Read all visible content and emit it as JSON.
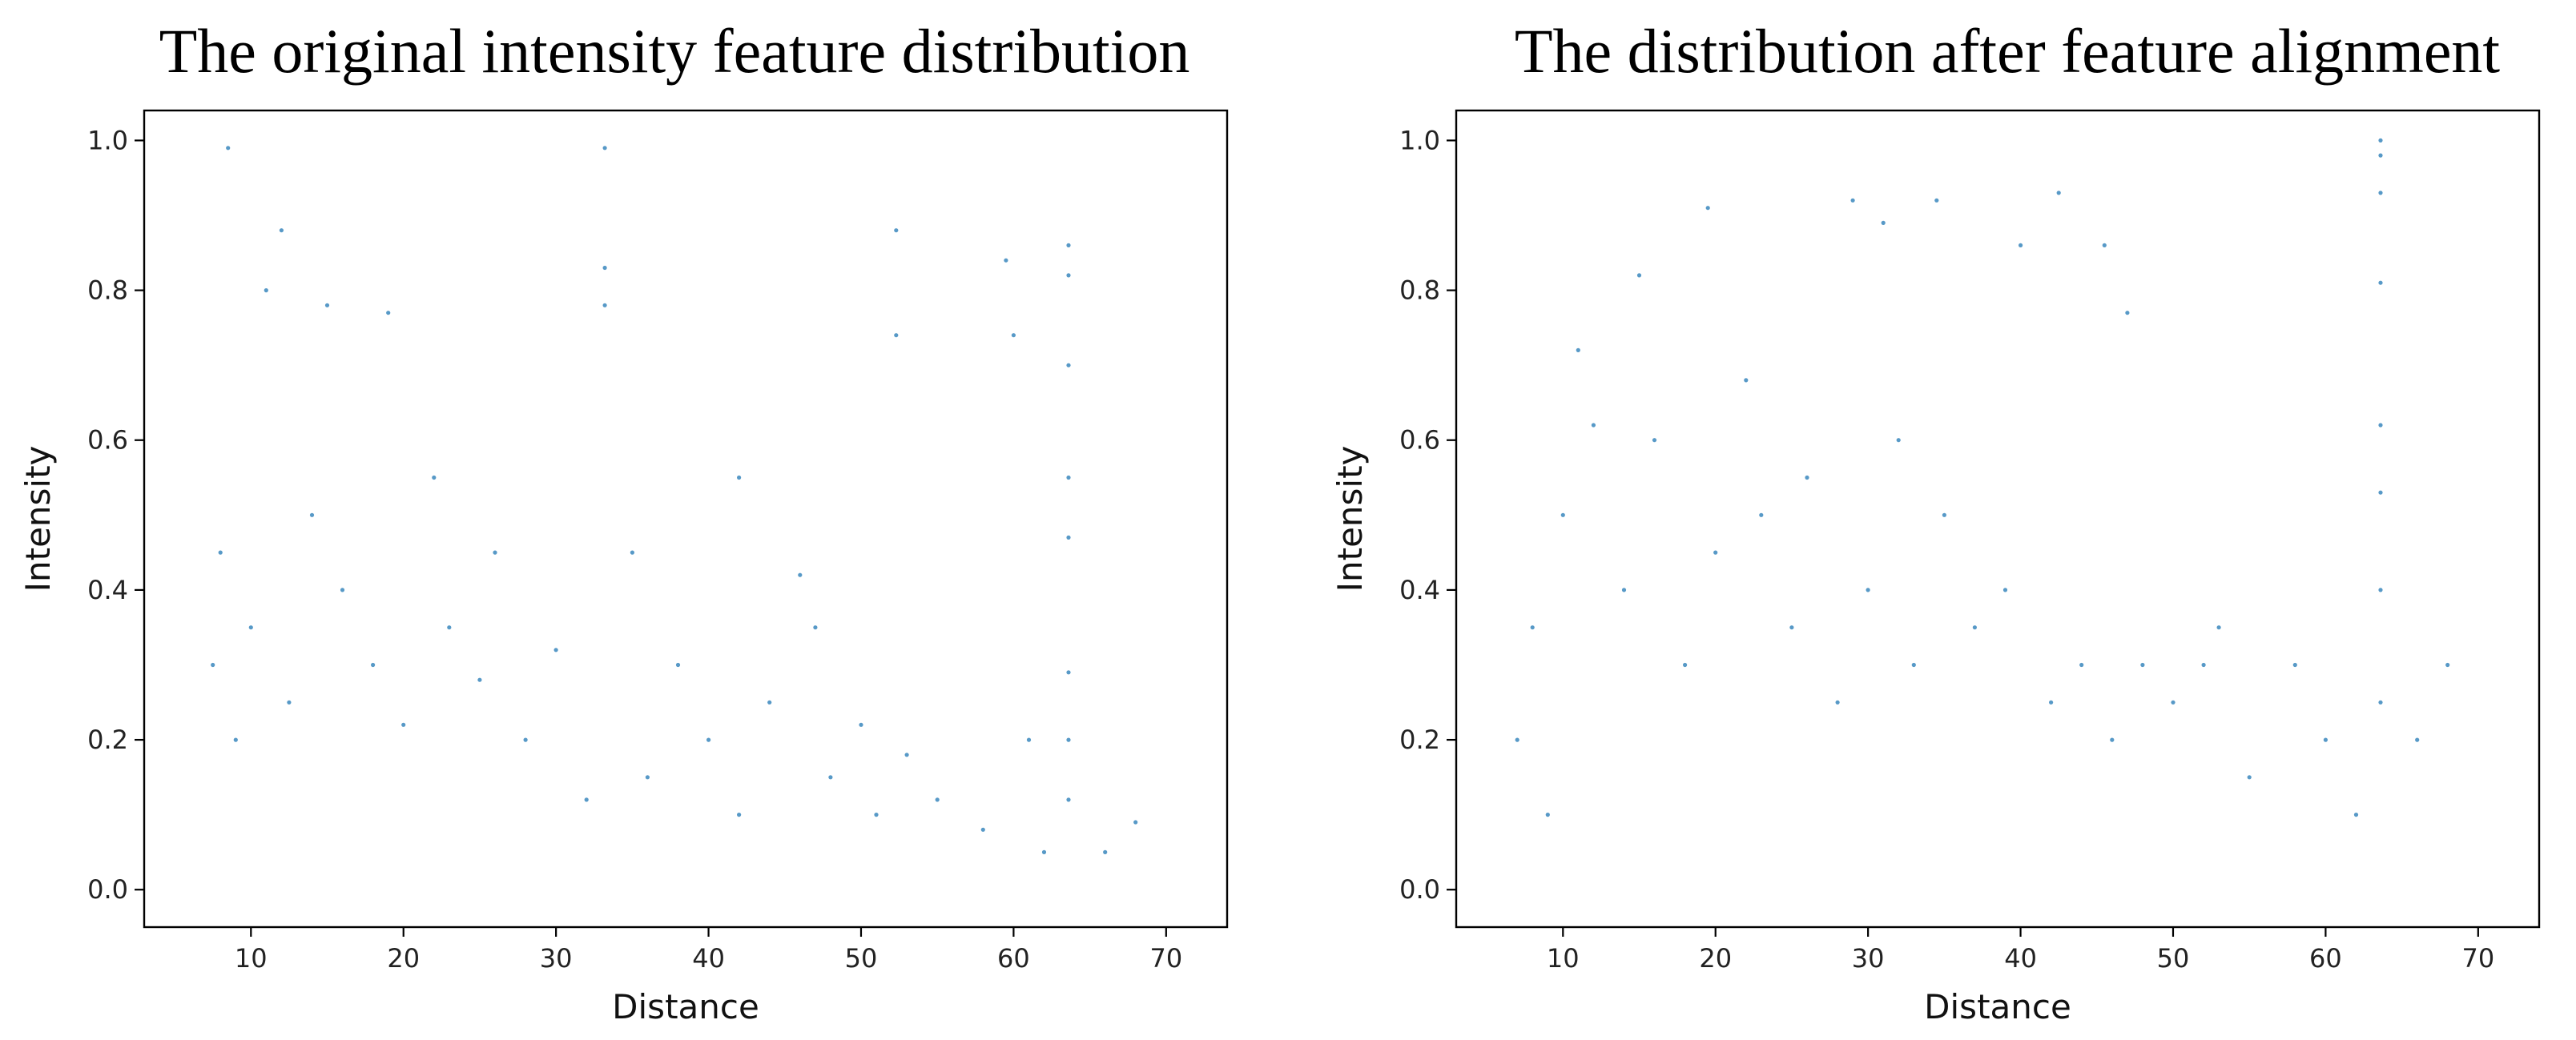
{
  "chart_data": [
    {
      "type": "scatter",
      "title": "The original intensity feature distribution",
      "xlabel": "Distance",
      "ylabel": "Intensity",
      "xlim": [
        3,
        74
      ],
      "ylim": [
        -0.05,
        1.04
      ],
      "xticks": [
        10,
        20,
        30,
        40,
        50,
        60,
        70
      ],
      "yticks": [
        0.0,
        0.2,
        0.4,
        0.6,
        0.8,
        1.0
      ],
      "xtick_labels": [
        "10",
        "20",
        "30",
        "40",
        "50",
        "60",
        "70"
      ],
      "ytick_labels": [
        "0.0",
        "0.2",
        "0.4",
        "0.6",
        "0.8",
        "1.0"
      ],
      "marker_color": "#1f77b4",
      "series": [
        {
          "name": "points",
          "points": [
            [
              7.5,
              0.3
            ],
            [
              8,
              0.45
            ],
            [
              8.5,
              0.99
            ],
            [
              9,
              0.2
            ],
            [
              10,
              0.35
            ],
            [
              11,
              0.8
            ],
            [
              12,
              0.88
            ],
            [
              12.5,
              0.25
            ],
            [
              14,
              0.5
            ],
            [
              15,
              0.78
            ],
            [
              16,
              0.4
            ],
            [
              18,
              0.3
            ],
            [
              19,
              0.77
            ],
            [
              20,
              0.22
            ],
            [
              22,
              0.55
            ],
            [
              23,
              0.35
            ],
            [
              25,
              0.28
            ],
            [
              26,
              0.45
            ],
            [
              28,
              0.2
            ],
            [
              30,
              0.32
            ],
            [
              32,
              0.12
            ],
            [
              33.2,
              0.99
            ],
            [
              33.2,
              0.83
            ],
            [
              33.2,
              0.78
            ],
            [
              35,
              0.45
            ],
            [
              36,
              0.15
            ],
            [
              38,
              0.3
            ],
            [
              40,
              0.2
            ],
            [
              42,
              0.55
            ],
            [
              42,
              0.1
            ],
            [
              44,
              0.25
            ],
            [
              46,
              0.42
            ],
            [
              47,
              0.35
            ],
            [
              48,
              0.15
            ],
            [
              50,
              0.22
            ],
            [
              51,
              0.1
            ],
            [
              52.3,
              0.88
            ],
            [
              52.3,
              0.74
            ],
            [
              53,
              0.18
            ],
            [
              55,
              0.12
            ],
            [
              58,
              0.08
            ],
            [
              59.5,
              0.84
            ],
            [
              60,
              0.74
            ],
            [
              61,
              0.2
            ],
            [
              62,
              0.05
            ],
            [
              63.6,
              0.86
            ],
            [
              63.6,
              0.82
            ],
            [
              63.6,
              0.7
            ],
            [
              63.6,
              0.55
            ],
            [
              63.6,
              0.47
            ],
            [
              63.6,
              0.29
            ],
            [
              63.6,
              0.2
            ],
            [
              63.6,
              0.12
            ],
            [
              66,
              0.05
            ],
            [
              68,
              0.09
            ]
          ]
        }
      ]
    },
    {
      "type": "scatter",
      "title": "The distribution after feature alignment",
      "xlabel": "Distance",
      "ylabel": "Intensity",
      "xlim": [
        3,
        74
      ],
      "ylim": [
        -0.05,
        1.04
      ],
      "xticks": [
        10,
        20,
        30,
        40,
        50,
        60,
        70
      ],
      "yticks": [
        0.0,
        0.2,
        0.4,
        0.6,
        0.8,
        1.0
      ],
      "xtick_labels": [
        "10",
        "20",
        "30",
        "40",
        "50",
        "60",
        "70"
      ],
      "ytick_labels": [
        "0.0",
        "0.2",
        "0.4",
        "0.6",
        "0.8",
        "1.0"
      ],
      "marker_color": "#1f77b4",
      "series": [
        {
          "name": "points",
          "points": [
            [
              7,
              0.2
            ],
            [
              8,
              0.35
            ],
            [
              9,
              0.1
            ],
            [
              10,
              0.5
            ],
            [
              11,
              0.72
            ],
            [
              12,
              0.62
            ],
            [
              14,
              0.4
            ],
            [
              15,
              0.82
            ],
            [
              16,
              0.6
            ],
            [
              18,
              0.3
            ],
            [
              19.5,
              0.91
            ],
            [
              20,
              0.45
            ],
            [
              22,
              0.68
            ],
            [
              23,
              0.5
            ],
            [
              25,
              0.35
            ],
            [
              26,
              0.55
            ],
            [
              28,
              0.25
            ],
            [
              29,
              0.92
            ],
            [
              30,
              0.4
            ],
            [
              31,
              0.89
            ],
            [
              32,
              0.6
            ],
            [
              33,
              0.3
            ],
            [
              34.5,
              0.92
            ],
            [
              35,
              0.5
            ],
            [
              37,
              0.35
            ],
            [
              39,
              0.4
            ],
            [
              40,
              0.86
            ],
            [
              42,
              0.25
            ],
            [
              42.5,
              0.93
            ],
            [
              44,
              0.3
            ],
            [
              45.5,
              0.86
            ],
            [
              46,
              0.2
            ],
            [
              47,
              0.77
            ],
            [
              48,
              0.3
            ],
            [
              50,
              0.25
            ],
            [
              52,
              0.3
            ],
            [
              53,
              0.35
            ],
            [
              55,
              0.15
            ],
            [
              58,
              0.3
            ],
            [
              60,
              0.2
            ],
            [
              62,
              0.1
            ],
            [
              63.6,
              1.0
            ],
            [
              63.6,
              0.98
            ],
            [
              63.6,
              0.93
            ],
            [
              63.6,
              0.81
            ],
            [
              63.6,
              0.62
            ],
            [
              63.6,
              0.53
            ],
            [
              63.6,
              0.4
            ],
            [
              63.6,
              0.25
            ],
            [
              66,
              0.2
            ],
            [
              68,
              0.3
            ]
          ]
        }
      ]
    }
  ]
}
